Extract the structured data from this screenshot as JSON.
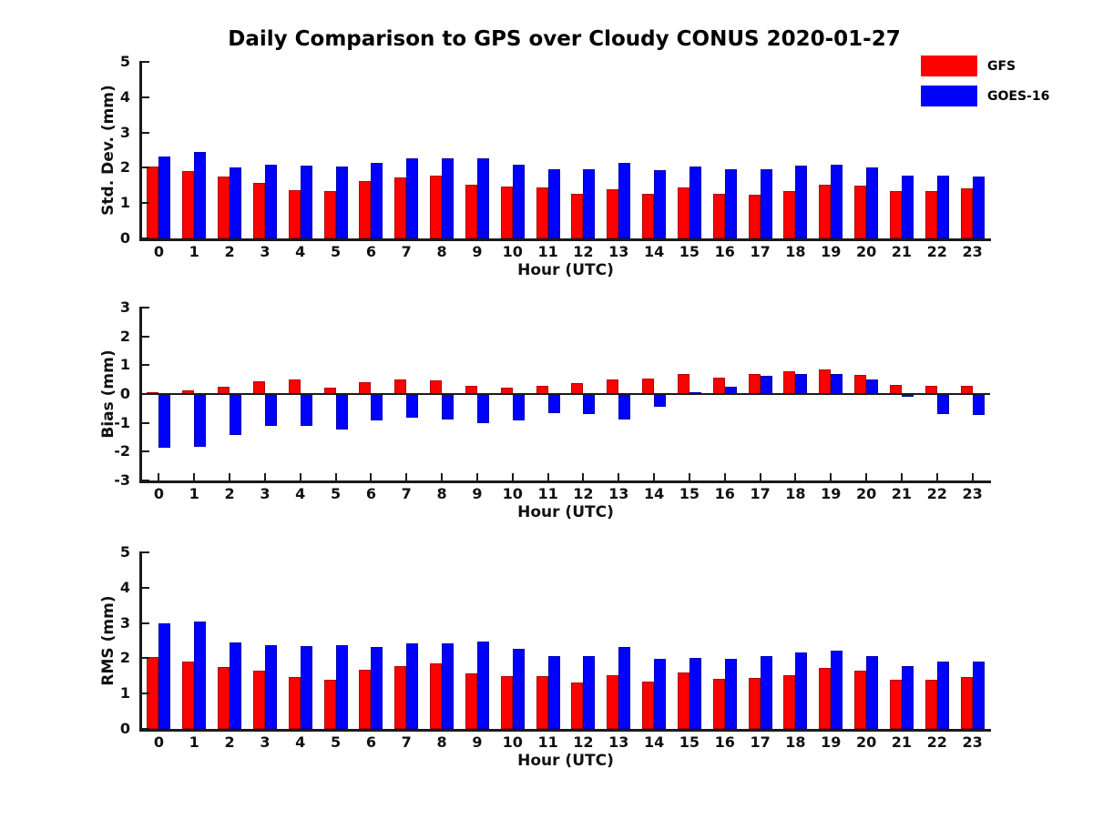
{
  "title": "Daily Comparison to GPS over Cloudy CONUS 2020-01-27",
  "colors": {
    "gfs": "#ff0000",
    "goes16": "#0000ff",
    "axis": "#1a1a1a"
  },
  "legend": {
    "items": [
      {
        "label": "GFS",
        "color": "#ff0000"
      },
      {
        "label": "GOES-16",
        "color": "#0000ff"
      }
    ]
  },
  "chart_data": [
    {
      "type": "bar",
      "title": "",
      "xlabel": "Hour (UTC)",
      "ylabel": "Std. Dev. (mm)",
      "ylim": [
        0,
        5
      ],
      "yticks": [
        0,
        1,
        2,
        3,
        4,
        5
      ],
      "legend_position": "outside-top-right",
      "grid": false,
      "categories": [
        "0",
        "1",
        "2",
        "3",
        "4",
        "5",
        "6",
        "7",
        "8",
        "9",
        "10",
        "11",
        "12",
        "13",
        "14",
        "15",
        "16",
        "17",
        "18",
        "19",
        "20",
        "21",
        "22",
        "23"
      ],
      "series": [
        {
          "name": "GFS",
          "color": "#ff0000",
          "values": [
            2.03,
            1.9,
            1.75,
            1.58,
            1.36,
            1.33,
            1.62,
            1.72,
            1.79,
            1.53,
            1.46,
            1.45,
            1.26,
            1.38,
            1.26,
            1.44,
            1.26,
            1.23,
            1.33,
            1.51,
            1.49,
            1.34,
            1.34,
            1.42
          ]
        },
        {
          "name": "GOES-16",
          "color": "#0000ff",
          "values": [
            2.33,
            2.46,
            2.0,
            2.08,
            2.05,
            2.03,
            2.13,
            2.28,
            2.26,
            2.26,
            2.08,
            1.95,
            1.95,
            2.15,
            1.93,
            2.03,
            1.97,
            1.97,
            2.05,
            2.1,
            2.02,
            1.78,
            1.77,
            1.74
          ]
        }
      ]
    },
    {
      "type": "bar",
      "title": "",
      "xlabel": "Hour (UTC)",
      "ylabel": "Bias (mm)",
      "ylim": [
        -3,
        3
      ],
      "yticks": [
        -3,
        -2,
        -1,
        0,
        1,
        2,
        3
      ],
      "grid": false,
      "categories": [
        "0",
        "1",
        "2",
        "3",
        "4",
        "5",
        "6",
        "7",
        "8",
        "9",
        "10",
        "11",
        "12",
        "13",
        "14",
        "15",
        "16",
        "17",
        "18",
        "19",
        "20",
        "21",
        "22",
        "23"
      ],
      "series": [
        {
          "name": "GFS",
          "color": "#ff0000",
          "values": [
            0.05,
            0.14,
            0.25,
            0.44,
            0.5,
            0.22,
            0.42,
            0.5,
            0.47,
            0.27,
            0.22,
            0.3,
            0.38,
            0.52,
            0.55,
            0.7,
            0.58,
            0.7,
            0.78,
            0.86,
            0.65,
            0.32,
            0.28,
            0.28
          ]
        },
        {
          "name": "GOES-16",
          "color": "#0000ff",
          "values": [
            -1.85,
            -1.82,
            -1.42,
            -1.1,
            -1.12,
            -1.23,
            -0.92,
            -0.82,
            -0.88,
            -1.0,
            -0.9,
            -0.67,
            -0.7,
            -0.87,
            -0.45,
            0.05,
            0.25,
            0.62,
            0.68,
            0.7,
            0.5,
            -0.1,
            -0.68,
            -0.73
          ]
        }
      ]
    },
    {
      "type": "bar",
      "title": "",
      "xlabel": "Hour (UTC)",
      "ylabel": "RMS (mm)",
      "ylim": [
        0,
        5
      ],
      "yticks": [
        0,
        1,
        2,
        3,
        4,
        5
      ],
      "grid": false,
      "categories": [
        "0",
        "1",
        "2",
        "3",
        "4",
        "5",
        "6",
        "7",
        "8",
        "9",
        "10",
        "11",
        "12",
        "13",
        "14",
        "15",
        "16",
        "17",
        "18",
        "19",
        "20",
        "21",
        "22",
        "23"
      ],
      "series": [
        {
          "name": "GFS",
          "color": "#ff0000",
          "values": [
            2.04,
            1.91,
            1.76,
            1.66,
            1.48,
            1.38,
            1.68,
            1.79,
            1.86,
            1.58,
            1.49,
            1.5,
            1.31,
            1.52,
            1.34,
            1.6,
            1.42,
            1.44,
            1.53,
            1.73,
            1.66,
            1.4,
            1.4,
            1.46
          ]
        },
        {
          "name": "GOES-16",
          "color": "#0000ff",
          "values": [
            2.98,
            3.04,
            2.45,
            2.37,
            2.34,
            2.37,
            2.33,
            2.42,
            2.42,
            2.47,
            2.27,
            2.06,
            2.06,
            2.32,
            1.98,
            2.02,
            1.99,
            2.07,
            2.16,
            2.21,
            2.07,
            1.78,
            1.91,
            1.91
          ]
        }
      ]
    }
  ]
}
